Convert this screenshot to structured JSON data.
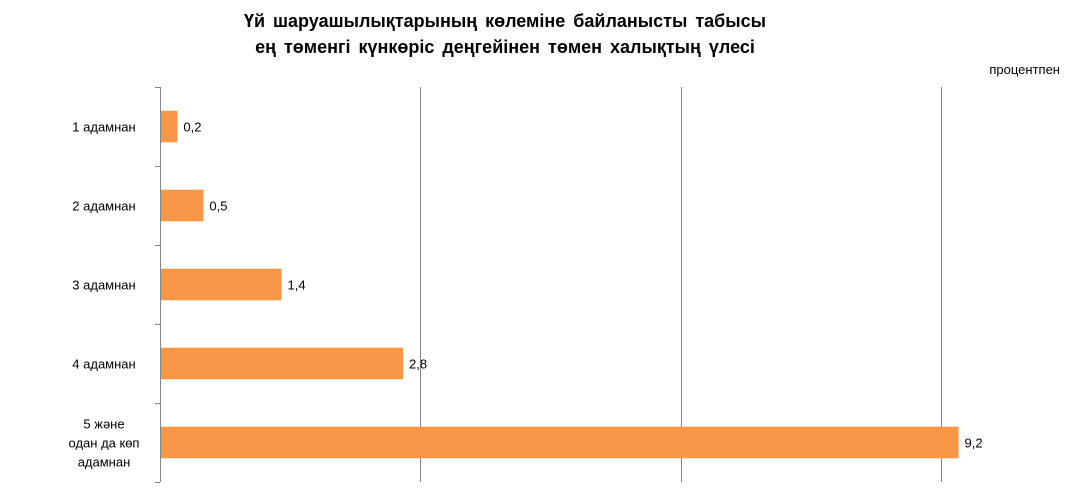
{
  "chart_data": {
    "type": "bar",
    "orientation": "horizontal",
    "title_lines": [
      "Үй шаруашылықтарының көлеміне байланысты табысы",
      "ең төменгі күнкөріс деңгейінен төмен халықтың үлесі"
    ],
    "unit": "процентпен",
    "categories": [
      "1 адамнан",
      "2 адамнан",
      "3 адамнан",
      "4 адамнан",
      "5 және\nодан да көп\nадамнан"
    ],
    "values": [
      0.2,
      0.5,
      1.4,
      2.8,
      9.2
    ],
    "value_labels": [
      "0,2",
      "0,5",
      "1,4",
      "2,8",
      "9,2"
    ],
    "xlim": [
      0,
      10
    ],
    "x_gridlines": [
      0,
      3,
      6,
      9
    ],
    "grid": true,
    "bar_color": "#F79646",
    "gridline_color": "#868686"
  }
}
